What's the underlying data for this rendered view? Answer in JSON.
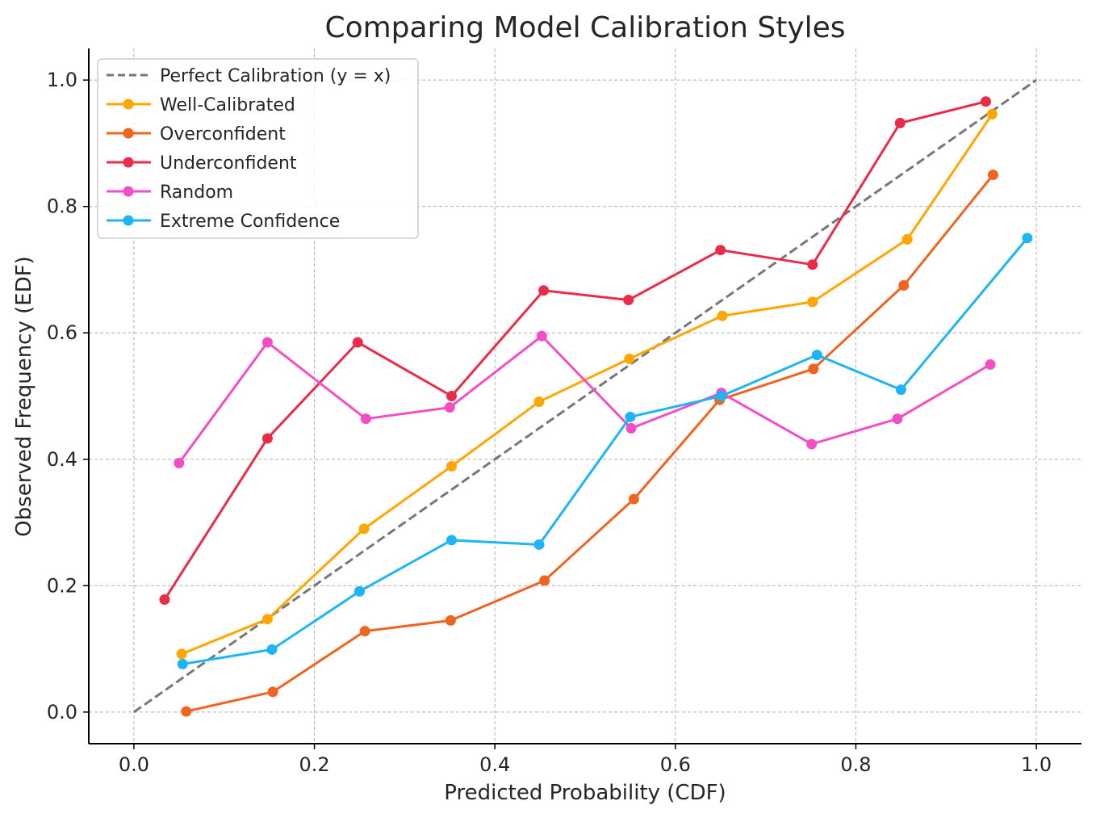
{
  "chart_data": {
    "type": "line",
    "title": "Comparing Model Calibration Styles",
    "xlabel": "Predicted Probability (CDF)",
    "ylabel": "Observed Frequency (EDF)",
    "xlim": [
      -0.05,
      1.05
    ],
    "ylim": [
      -0.05,
      1.05
    ],
    "xticks": [
      "0.0",
      "0.2",
      "0.4",
      "0.6",
      "0.8",
      "1.0"
    ],
    "yticks": [
      "0.0",
      "0.2",
      "0.4",
      "0.6",
      "0.8",
      "1.0"
    ],
    "grid": true,
    "legend_position": "top-left",
    "reference_line": {
      "name": "Perfect Calibration (y = x)",
      "x": [
        0.0,
        1.0
      ],
      "y": [
        0.0,
        1.0
      ],
      "color": "#777777",
      "style": "dashed"
    },
    "series": [
      {
        "name": "Well-Calibrated",
        "color": "#FFA600",
        "x": [
          0.053,
          0.148,
          0.255,
          0.352,
          0.449,
          0.549,
          0.652,
          0.752,
          0.857,
          0.951
        ],
        "y": [
          0.092,
          0.147,
          0.29,
          0.389,
          0.491,
          0.559,
          0.627,
          0.649,
          0.748,
          0.946
        ]
      },
      {
        "name": "Overconfident",
        "color": "#EF6420",
        "x": [
          0.058,
          0.154,
          0.256,
          0.351,
          0.455,
          0.554,
          0.649,
          0.753,
          0.853,
          0.952
        ],
        "y": [
          0.001,
          0.032,
          0.128,
          0.145,
          0.208,
          0.337,
          0.494,
          0.543,
          0.675,
          0.85
        ]
      },
      {
        "name": "Underconfident",
        "color": "#EA2C4B",
        "x": [
          0.034,
          0.148,
          0.248,
          0.352,
          0.454,
          0.548,
          0.65,
          0.752,
          0.849,
          0.944
        ],
        "y": [
          0.178,
          0.433,
          0.585,
          0.5,
          0.667,
          0.652,
          0.731,
          0.708,
          0.932,
          0.966
        ]
      },
      {
        "name": "Random",
        "color": "#F34EC5",
        "x": [
          0.05,
          0.148,
          0.257,
          0.35,
          0.452,
          0.551,
          0.651,
          0.751,
          0.846,
          0.949
        ],
        "y": [
          0.394,
          0.585,
          0.464,
          0.482,
          0.595,
          0.449,
          0.505,
          0.424,
          0.464,
          0.55
        ]
      },
      {
        "name": "Extreme Confidence",
        "color": "#1EB4F5",
        "x": [
          0.054,
          0.153,
          0.25,
          0.352,
          0.449,
          0.55,
          0.651,
          0.757,
          0.85,
          0.99
        ],
        "y": [
          0.076,
          0.099,
          0.191,
          0.272,
          0.265,
          0.467,
          0.5,
          0.565,
          0.51,
          0.75
        ]
      }
    ]
  }
}
